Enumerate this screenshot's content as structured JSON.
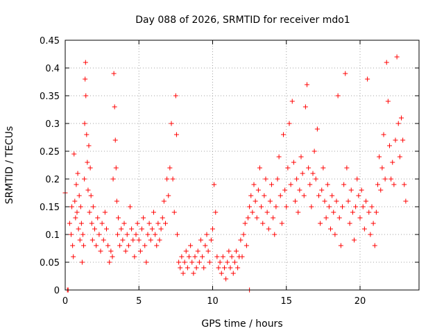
{
  "chart_data": {
    "type": "scatter",
    "title": "Day 088 of 2026, SRMTID for receiver mdo1",
    "xlabel": "GPS time / hours",
    "ylabel": "SRMTID / TECUs",
    "xlim": [
      0,
      24
    ],
    "ylim": [
      0,
      0.45
    ],
    "xticks": [
      "0",
      "5",
      "10",
      "15",
      "20"
    ],
    "yticks": [
      "0",
      "0.05",
      "0.1",
      "0.15",
      "0.2",
      "0.25",
      "0.3",
      "0.35",
      "0.4",
      "0.45"
    ],
    "grid": true,
    "marker": "+",
    "color": "#ff0000",
    "series": [
      {
        "name": "SRMTID",
        "points": [
          [
            0.0,
            0.175
          ],
          [
            0.15,
            0.0
          ],
          [
            0.2,
            0.0
          ],
          [
            0.3,
            0.12
          ],
          [
            0.4,
            0.1
          ],
          [
            0.45,
            0.15
          ],
          [
            0.5,
            0.08
          ],
          [
            0.55,
            0.06
          ],
          [
            0.6,
            0.245
          ],
          [
            0.65,
            0.16
          ],
          [
            0.7,
            0.13
          ],
          [
            0.75,
            0.19
          ],
          [
            0.8,
            0.14
          ],
          [
            0.85,
            0.21
          ],
          [
            0.9,
            0.11
          ],
          [
            0.95,
            0.17
          ],
          [
            1.0,
            0.09
          ],
          [
            1.05,
            0.15
          ],
          [
            1.1,
            0.12
          ],
          [
            1.15,
            0.05
          ],
          [
            1.2,
            0.1
          ],
          [
            1.25,
            0.08
          ],
          [
            1.3,
            0.2
          ],
          [
            1.32,
            0.3
          ],
          [
            1.35,
            0.38
          ],
          [
            1.38,
            0.41
          ],
          [
            1.4,
            0.35
          ],
          [
            1.45,
            0.28
          ],
          [
            1.5,
            0.23
          ],
          [
            1.55,
            0.18
          ],
          [
            1.6,
            0.26
          ],
          [
            1.65,
            0.14
          ],
          [
            1.7,
            0.22
          ],
          [
            1.75,
            0.17
          ],
          [
            1.8,
            0.12
          ],
          [
            1.85,
            0.09
          ],
          [
            1.9,
            0.15
          ],
          [
            2.0,
            0.11
          ],
          [
            2.1,
            0.08
          ],
          [
            2.2,
            0.13
          ],
          [
            2.3,
            0.1
          ],
          [
            2.4,
            0.07
          ],
          [
            2.5,
            0.12
          ],
          [
            2.6,
            0.09
          ],
          [
            2.7,
            0.14
          ],
          [
            2.8,
            0.11
          ],
          [
            2.9,
            0.08
          ],
          [
            3.0,
            0.05
          ],
          [
            3.1,
            0.07
          ],
          [
            3.2,
            0.06
          ],
          [
            3.25,
            0.2
          ],
          [
            3.3,
            0.39
          ],
          [
            3.35,
            0.33
          ],
          [
            3.4,
            0.27
          ],
          [
            3.45,
            0.22
          ],
          [
            3.5,
            0.16
          ],
          [
            3.55,
            0.1
          ],
          [
            3.6,
            0.13
          ],
          [
            3.7,
            0.08
          ],
          [
            3.8,
            0.11
          ],
          [
            3.9,
            0.09
          ],
          [
            4.0,
            0.12
          ],
          [
            4.1,
            0.07
          ],
          [
            4.2,
            0.1
          ],
          [
            4.3,
            0.08
          ],
          [
            4.4,
            0.15
          ],
          [
            4.5,
            0.11
          ],
          [
            4.6,
            0.09
          ],
          [
            4.7,
            0.06
          ],
          [
            4.8,
            0.1
          ],
          [
            4.9,
            0.12
          ],
          [
            5.0,
            0.09
          ],
          [
            5.1,
            0.07
          ],
          [
            5.2,
            0.11
          ],
          [
            5.3,
            0.13
          ],
          [
            5.4,
            0.08
          ],
          [
            5.5,
            0.05
          ],
          [
            5.6,
            0.1
          ],
          [
            5.7,
            0.12
          ],
          [
            5.8,
            0.09
          ],
          [
            5.9,
            0.11
          ],
          [
            6.0,
            0.14
          ],
          [
            6.1,
            0.1
          ],
          [
            6.2,
            0.08
          ],
          [
            6.3,
            0.12
          ],
          [
            6.4,
            0.09
          ],
          [
            6.5,
            0.11
          ],
          [
            6.6,
            0.13
          ],
          [
            6.7,
            0.16
          ],
          [
            6.8,
            0.12
          ],
          [
            6.9,
            0.2
          ],
          [
            7.0,
            0.17
          ],
          [
            7.1,
            0.22
          ],
          [
            7.2,
            0.3
          ],
          [
            7.3,
            0.2
          ],
          [
            7.4,
            0.14
          ],
          [
            7.5,
            0.35
          ],
          [
            7.55,
            0.28
          ],
          [
            7.6,
            0.1
          ],
          [
            7.7,
            0.05
          ],
          [
            7.8,
            0.04
          ],
          [
            7.9,
            0.06
          ],
          [
            8.0,
            0.03
          ],
          [
            8.1,
            0.05
          ],
          [
            8.2,
            0.07
          ],
          [
            8.3,
            0.04
          ],
          [
            8.4,
            0.06
          ],
          [
            8.5,
            0.08
          ],
          [
            8.6,
            0.05
          ],
          [
            8.7,
            0.03
          ],
          [
            8.8,
            0.06
          ],
          [
            8.9,
            0.04
          ],
          [
            9.0,
            0.07
          ],
          [
            9.1,
            0.05
          ],
          [
            9.2,
            0.09
          ],
          [
            9.3,
            0.06
          ],
          [
            9.4,
            0.04
          ],
          [
            9.5,
            0.08
          ],
          [
            9.6,
            0.1
          ],
          [
            9.7,
            0.07
          ],
          [
            9.8,
            0.05
          ],
          [
            9.9,
            0.09
          ],
          [
            10.0,
            0.11
          ],
          [
            10.1,
            0.19
          ],
          [
            10.2,
            0.14
          ],
          [
            10.3,
            0.06
          ],
          [
            10.4,
            0.04
          ],
          [
            10.5,
            0.05
          ],
          [
            10.6,
            0.03
          ],
          [
            10.7,
            0.06
          ],
          [
            10.8,
            0.04
          ],
          [
            10.9,
            0.02
          ],
          [
            11.0,
            0.05
          ],
          [
            11.1,
            0.07
          ],
          [
            11.2,
            0.04
          ],
          [
            11.3,
            0.06
          ],
          [
            11.4,
            0.03
          ],
          [
            11.5,
            0.05
          ],
          [
            11.6,
            0.07
          ],
          [
            11.7,
            0.04
          ],
          [
            11.8,
            0.06
          ],
          [
            11.9,
            0.09
          ],
          [
            12.0,
            0.06
          ],
          [
            12.1,
            0.1
          ],
          [
            12.2,
            0.12
          ],
          [
            12.3,
            0.08
          ],
          [
            12.4,
            0.13
          ],
          [
            12.5,
            0.15
          ],
          [
            12.6,
            0.17
          ],
          [
            12.7,
            0.14
          ],
          [
            12.8,
            0.19
          ],
          [
            12.9,
            0.16
          ],
          [
            13.0,
            0.13
          ],
          [
            13.1,
            0.18
          ],
          [
            13.2,
            0.22
          ],
          [
            13.3,
            0.15
          ],
          [
            13.4,
            0.12
          ],
          [
            13.5,
            0.17
          ],
          [
            13.6,
            0.2
          ],
          [
            13.7,
            0.14
          ],
          [
            13.8,
            0.11
          ],
          [
            13.9,
            0.16
          ],
          [
            14.0,
            0.19
          ],
          [
            14.1,
            0.13
          ],
          [
            14.2,
            0.1
          ],
          [
            14.3,
            0.15
          ],
          [
            14.4,
            0.2
          ],
          [
            14.5,
            0.24
          ],
          [
            14.6,
            0.17
          ],
          [
            14.7,
            0.12
          ],
          [
            14.8,
            0.28
          ],
          [
            14.9,
            0.18
          ],
          [
            15.0,
            0.15
          ],
          [
            15.1,
            0.22
          ],
          [
            15.2,
            0.3
          ],
          [
            15.3,
            0.19
          ],
          [
            15.4,
            0.34
          ],
          [
            15.5,
            0.23
          ],
          [
            15.6,
            0.16
          ],
          [
            15.7,
            0.2
          ],
          [
            15.8,
            0.14
          ],
          [
            15.9,
            0.18
          ],
          [
            16.0,
            0.24
          ],
          [
            16.1,
            0.21
          ],
          [
            16.2,
            0.17
          ],
          [
            16.3,
            0.33
          ],
          [
            16.4,
            0.37
          ],
          [
            16.5,
            0.22
          ],
          [
            16.6,
            0.19
          ],
          [
            16.7,
            0.15
          ],
          [
            16.8,
            0.21
          ],
          [
            16.9,
            0.25
          ],
          [
            17.0,
            0.2
          ],
          [
            17.1,
            0.29
          ],
          [
            17.2,
            0.17
          ],
          [
            17.3,
            0.12
          ],
          [
            17.4,
            0.18
          ],
          [
            17.5,
            0.22
          ],
          [
            17.6,
            0.16
          ],
          [
            17.7,
            0.13
          ],
          [
            17.8,
            0.19
          ],
          [
            17.9,
            0.15
          ],
          [
            18.0,
            0.11
          ],
          [
            18.1,
            0.17
          ],
          [
            18.2,
            0.14
          ],
          [
            18.3,
            0.1
          ],
          [
            18.4,
            0.16
          ],
          [
            18.5,
            0.35
          ],
          [
            18.6,
            0.13
          ],
          [
            18.7,
            0.08
          ],
          [
            18.8,
            0.15
          ],
          [
            18.9,
            0.19
          ],
          [
            19.0,
            0.39
          ],
          [
            19.1,
            0.22
          ],
          [
            19.2,
            0.16
          ],
          [
            19.3,
            0.12
          ],
          [
            19.4,
            0.18
          ],
          [
            19.5,
            0.14
          ],
          [
            19.6,
            0.09
          ],
          [
            19.7,
            0.15
          ],
          [
            19.8,
            0.2
          ],
          [
            19.9,
            0.17
          ],
          [
            20.0,
            0.13
          ],
          [
            20.1,
            0.18
          ],
          [
            20.2,
            0.15
          ],
          [
            20.3,
            0.11
          ],
          [
            20.4,
            0.16
          ],
          [
            20.5,
            0.38
          ],
          [
            20.6,
            0.14
          ],
          [
            20.7,
            0.1
          ],
          [
            20.8,
            0.15
          ],
          [
            20.9,
            0.12
          ],
          [
            21.0,
            0.08
          ],
          [
            21.1,
            0.14
          ],
          [
            21.2,
            0.19
          ],
          [
            21.3,
            0.24
          ],
          [
            21.4,
            0.18
          ],
          [
            21.5,
            0.22
          ],
          [
            21.6,
            0.28
          ],
          [
            21.7,
            0.2
          ],
          [
            21.8,
            0.41
          ],
          [
            21.9,
            0.34
          ],
          [
            22.0,
            0.26
          ],
          [
            22.1,
            0.2
          ],
          [
            22.2,
            0.23
          ],
          [
            22.3,
            0.19
          ],
          [
            22.4,
            0.27
          ],
          [
            22.5,
            0.42
          ],
          [
            22.6,
            0.3
          ],
          [
            22.7,
            0.24
          ],
          [
            22.8,
            0.31
          ],
          [
            22.9,
            0.27
          ],
          [
            23.0,
            0.19
          ],
          [
            23.1,
            0.16
          ],
          [
            12.5,
            0.0
          ]
        ]
      }
    ]
  }
}
